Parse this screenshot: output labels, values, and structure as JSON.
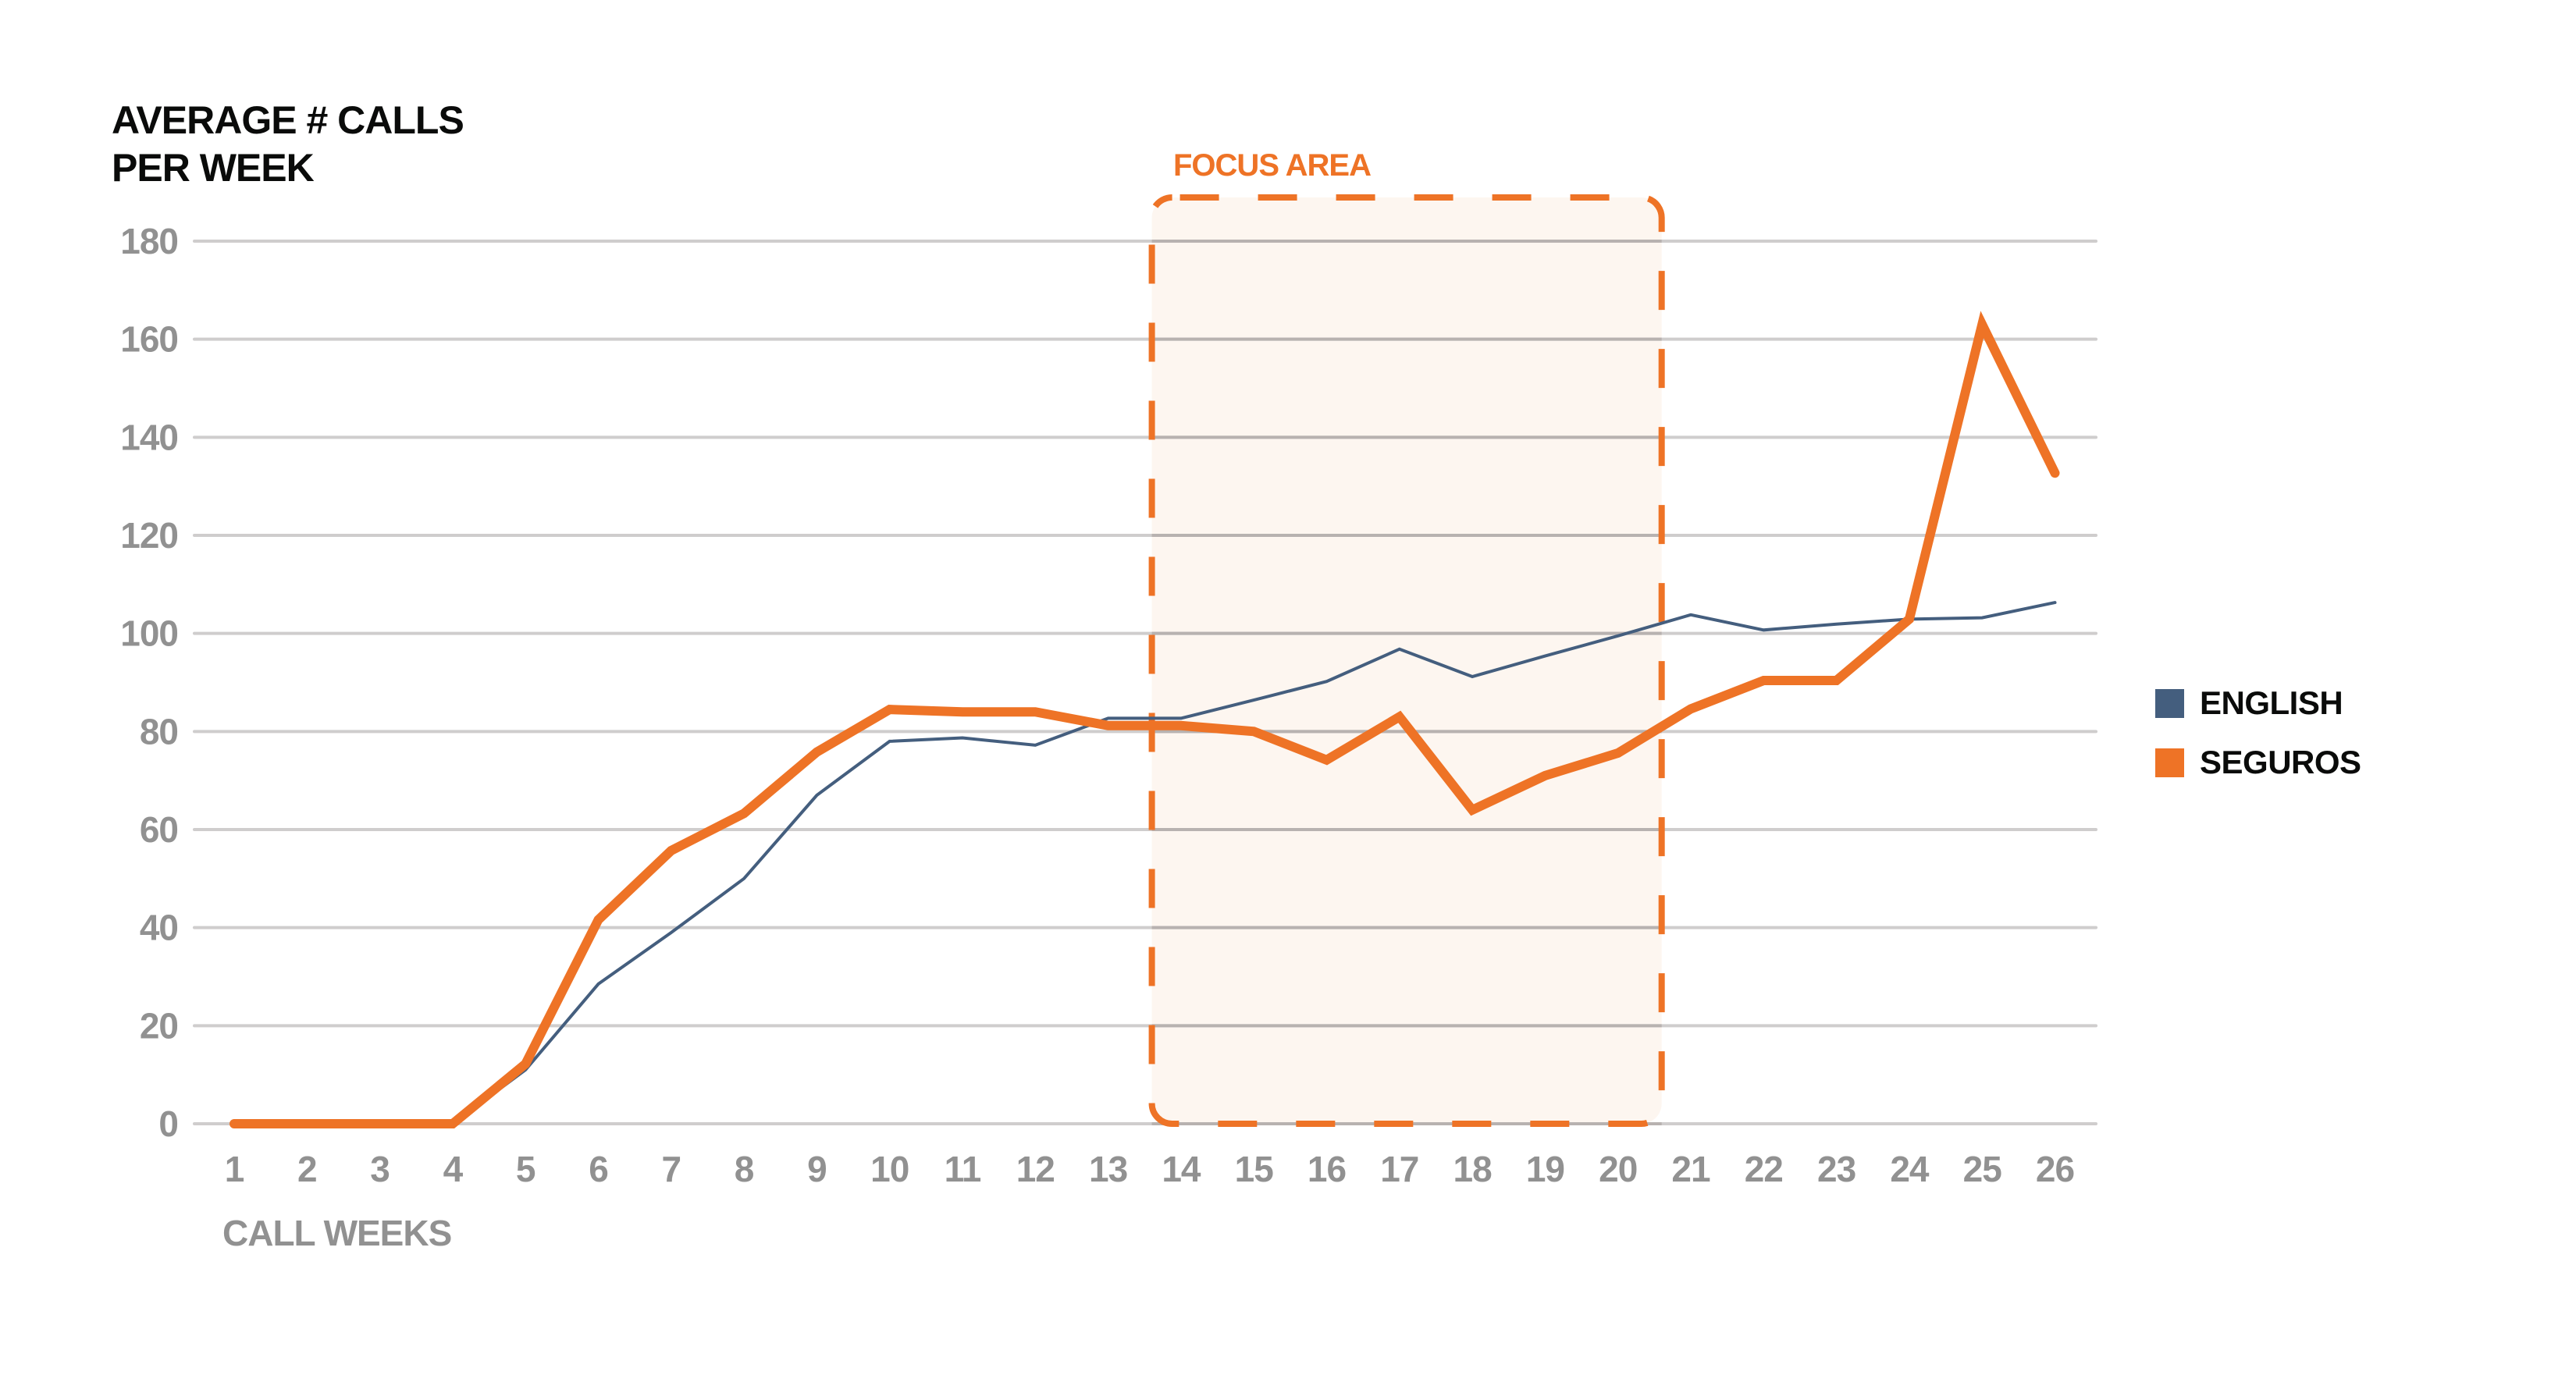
{
  "chart_data": {
    "type": "line",
    "title": "",
    "ylabel": "AVERAGE # CALLS PER WEEK",
    "ylabel_lines": [
      "AVERAGE # CALLS",
      "PER WEEK"
    ],
    "xlabel": "CALL WEEKS",
    "ylim": [
      0,
      180
    ],
    "yticks": [
      0,
      20,
      40,
      60,
      80,
      100,
      120,
      140,
      160,
      180
    ],
    "ytick_labels": [
      "0",
      "20",
      "40",
      "60",
      "80",
      "100",
      "120",
      "140",
      "160",
      "180"
    ],
    "x": [
      1,
      2,
      3,
      4,
      5,
      6,
      7,
      8,
      9,
      10,
      11,
      12,
      13,
      14,
      15,
      16,
      17,
      18,
      19,
      20,
      21,
      22,
      23,
      24,
      25,
      26
    ],
    "categories": [
      "1",
      "2",
      "3",
      "4",
      "5",
      "6",
      "7",
      "8",
      "9",
      "10",
      "11",
      "12",
      "13",
      "14",
      "15",
      "16",
      "17",
      "18",
      "19",
      "20",
      "21",
      "22",
      "23",
      "24",
      "25",
      "26"
    ],
    "grid": true,
    "legend_position": "right",
    "series": [
      {
        "name": "ENGLISH",
        "color": "#445e7e",
        "line_width": 4,
        "values": [
          0,
          0,
          0,
          0,
          11,
          28.5,
          39,
          50,
          67,
          78,
          78.7,
          77.2,
          82.7,
          82.7,
          86.4,
          90.2,
          96.8,
          91.2,
          95.4,
          99.5,
          103.8,
          100.7,
          101.9,
          102.9,
          103.2,
          106.3
        ]
      },
      {
        "name": "SEGUROS",
        "color": "#ee7326",
        "line_width": 12,
        "values": [
          0,
          0,
          0,
          0,
          12.2,
          41.6,
          55.7,
          63.3,
          75.8,
          84.5,
          84,
          84,
          81.2,
          81.2,
          80,
          74.2,
          83,
          64,
          71,
          75.6,
          84.6,
          90.4,
          90.4,
          102.9,
          163,
          132.7
        ]
      }
    ],
    "annotations": [
      {
        "type": "shaded-region",
        "label": "FOCUS AREA",
        "x_start": 13.6,
        "x_end": 20.6,
        "y_start": 0,
        "y_end": 189,
        "color": "#ee7326",
        "fill": "#fdf6f0",
        "border": "dashed"
      }
    ]
  },
  "labels": {
    "ytitle_line1": "AVERAGE # CALLS",
    "ytitle_line2": "PER WEEK",
    "xtitle": "CALL WEEKS",
    "focus_area": "FOCUS AREA"
  },
  "legend": [
    {
      "label": "ENGLISH",
      "color": "#445e7e"
    },
    {
      "label": "SEGUROS",
      "color": "#ee7326"
    }
  ],
  "colors": {
    "grid": "#cfcdcd",
    "tick_text": "#919191",
    "title_text": "#0a0b0a",
    "accent": "#ee7326",
    "english": "#445e7e",
    "focus_fill": "#fdf6f0"
  }
}
